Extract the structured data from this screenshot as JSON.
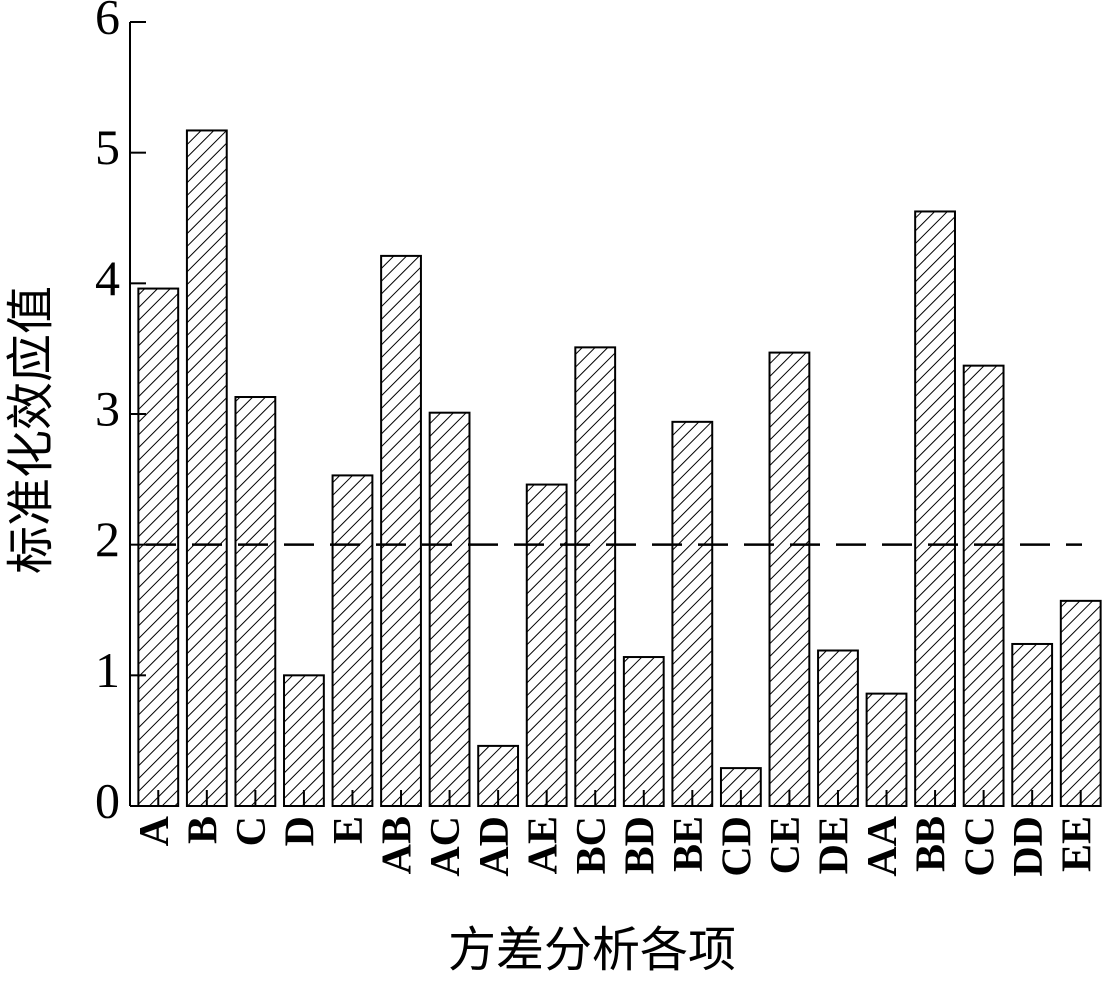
{
  "chart_data": {
    "type": "bar",
    "x_label": "方差分析各项",
    "y_label": "标准化效应值",
    "categories": [
      "A",
      "B",
      "C",
      "D",
      "E",
      "AB",
      "AC",
      "AD",
      "AE",
      "BC",
      "BD",
      "BE",
      "CD",
      "CE",
      "DE",
      "AA",
      "BB",
      "CC",
      "DD",
      "EE"
    ],
    "values": [
      3.96,
      5.17,
      3.13,
      1.0,
      2.53,
      4.21,
      3.01,
      0.46,
      2.46,
      3.51,
      1.14,
      2.94,
      0.29,
      3.47,
      1.19,
      0.86,
      4.55,
      3.37,
      1.24,
      1.57
    ],
    "color": "#000000",
    "ylim": [
      0,
      6
    ],
    "yticks": [
      0,
      1,
      2,
      3,
      4,
      5,
      6
    ],
    "reference_line": 2
  }
}
